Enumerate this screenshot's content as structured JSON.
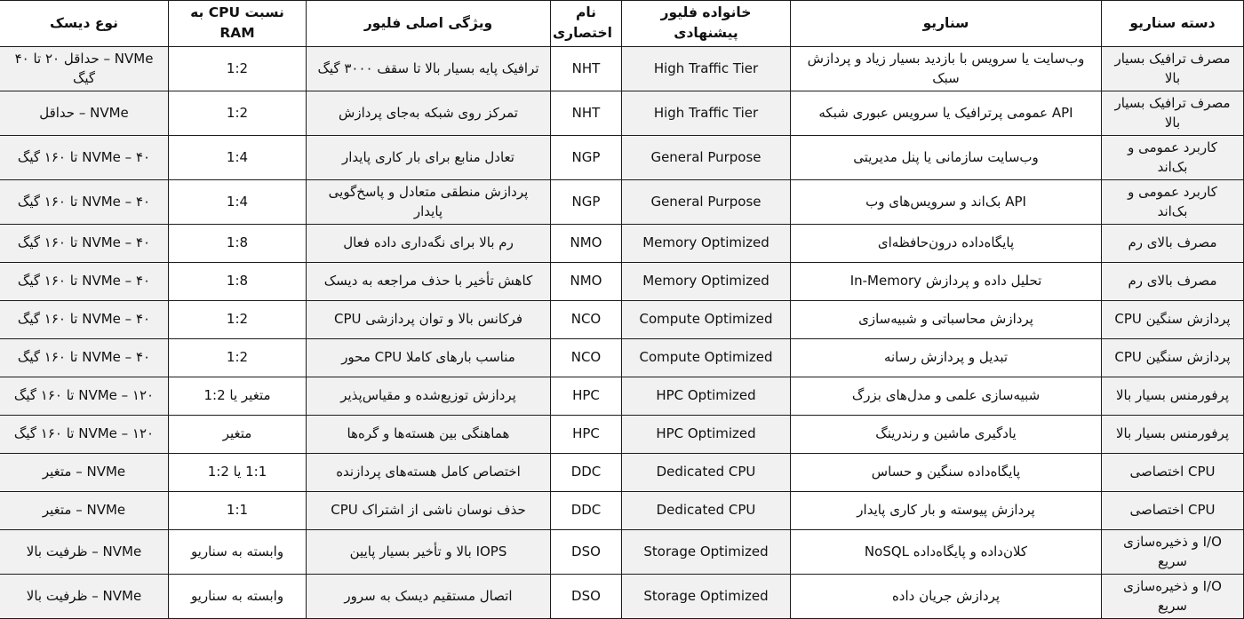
{
  "colors": {
    "stripe": "#f1f1f1",
    "border": "#1c1c1c",
    "text": "#111111",
    "background": "#ffffff"
  },
  "table": {
    "headers": [
      "دسته سناریو",
      "سناریو",
      "خانواده فلیور پیشنهادی",
      "نام اختصاری",
      "ویژگی اصلی فلیور",
      "نسبت CPU به RAM",
      "نوع دیسک"
    ],
    "column_keys": [
      "category",
      "scenario",
      "family",
      "abbr",
      "feature",
      "ratio",
      "disk"
    ],
    "rows": [
      {
        "category": "مصرف ترافیک بسیار بالا",
        "scenario": "وب‌سایت یا سرویس با بازدید بسیار زیاد و پردازش سبک",
        "family": "High Traffic Tier",
        "abbr": "NHT",
        "feature": "ترافیک پایه بسیار بالا تا سقف ۳۰۰۰ گیگ",
        "ratio": "1:2",
        "disk": "NVMe – حداقل ۲۰ تا ۴۰ گیگ"
      },
      {
        "category": "مصرف ترافیک بسیار بالا",
        "scenario": "API عمومی پرترافیک یا سرویس عبوری شبکه",
        "family": "High Traffic Tier",
        "abbr": "NHT",
        "feature": "تمرکز روی شبکه به‌جای پردازش",
        "ratio": "1:2",
        "disk": "NVMe – حداقل"
      },
      {
        "category": "کاربرد عمومی و بک‌اند",
        "scenario": "وب‌سایت سازمانی یا پنل مدیریتی",
        "family": "General Purpose",
        "abbr": "NGP",
        "feature": "تعادل منابع برای بار کاری پایدار",
        "ratio": "1:4",
        "disk": "NVMe – ۴۰ تا ۱۶۰ گیگ"
      },
      {
        "category": "کاربرد عمومی و بک‌اند",
        "scenario": "API بک‌اند و سرویس‌های وب",
        "family": "General Purpose",
        "abbr": "NGP",
        "feature": "پردازش منطقی متعادل و پاسخ‌گویی پایدار",
        "ratio": "1:4",
        "disk": "NVMe – ۴۰ تا ۱۶۰ گیگ"
      },
      {
        "category": "مصرف بالای رم",
        "scenario": "پایگاه‌داده درون‌حافظه‌ای",
        "family": "Memory Optimized",
        "abbr": "NMO",
        "feature": "رم بالا برای نگه‌داری داده فعال",
        "ratio": "1:8",
        "disk": "NVMe – ۴۰ تا ۱۶۰ گیگ"
      },
      {
        "category": "مصرف بالای رم",
        "scenario": "تحلیل داده و پردازش In-Memory",
        "family": "Memory Optimized",
        "abbr": "NMO",
        "feature": "کاهش تأخیر با حذف مراجعه به دیسک",
        "ratio": "1:8",
        "disk": "NVMe – ۴۰ تا ۱۶۰ گیگ"
      },
      {
        "category": "پردازش سنگین CPU",
        "scenario": "پردازش محاسباتی و شبیه‌سازی",
        "family": "Compute Optimized",
        "abbr": "NCO",
        "feature": "فرکانس بالا و توان پردازشی CPU",
        "ratio": "1:2",
        "disk": "NVMe – ۴۰ تا ۱۶۰ گیگ"
      },
      {
        "category": "پردازش سنگین CPU",
        "scenario": "تبدیل و پردازش رسانه",
        "family": "Compute Optimized",
        "abbr": "NCO",
        "feature": "مناسب بارهای کاملا CPU محور",
        "ratio": "1:2",
        "disk": "NVMe – ۴۰ تا ۱۶۰ گیگ"
      },
      {
        "category": "پرفورمنس بسیار بالا",
        "scenario": "شبیه‌سازی علمی و مدل‌های بزرگ",
        "family": "HPC Optimized",
        "abbr": "HPC",
        "feature": "پردازش توزیع‌شده و مقیاس‌پذیر",
        "ratio": "متغیر یا 1:2",
        "disk": "NVMe – ۱۲۰ تا ۱۶۰ گیگ"
      },
      {
        "category": "پرفورمنس بسیار بالا",
        "scenario": "یادگیری ماشین و رندرینگ",
        "family": "HPC Optimized",
        "abbr": "HPC",
        "feature": "هماهنگی بین هسته‌ها و گره‌ها",
        "ratio": "متغیر",
        "disk": "NVMe – ۱۲۰ تا ۱۶۰ گیگ"
      },
      {
        "category": "CPU اختصاصی",
        "scenario": "پایگاه‌داده سنگین و حساس",
        "family": "Dedicated CPU",
        "abbr": "DDC",
        "feature": "اختصاص کامل هسته‌های پردازنده",
        "ratio": "1:1 یا 1:2",
        "disk": "NVMe – متغیر"
      },
      {
        "category": "CPU اختصاصی",
        "scenario": "پردازش پیوسته و بار کاری پایدار",
        "family": "Dedicated CPU",
        "abbr": "DDC",
        "feature": "حذف نوسان ناشی از اشتراک CPU",
        "ratio": "1:1",
        "disk": "NVMe – متغیر"
      },
      {
        "category": "I/O و ذخیره‌سازی سریع",
        "scenario": "کلان‌داده و پایگاه‌داده NoSQL",
        "family": "Storage Optimized",
        "abbr": "DSO",
        "feature": "IOPS بالا و تأخیر بسیار پایین",
        "ratio": "وابسته به سناریو",
        "disk": "NVMe – ظرفیت بالا"
      },
      {
        "category": "I/O و ذخیره‌سازی سریع",
        "scenario": "پردازش جریان داده",
        "family": "Storage Optimized",
        "abbr": "DSO",
        "feature": "اتصال مستقیم دیسک به سرور",
        "ratio": "وابسته به سناریو",
        "disk": "NVMe – ظرفیت بالا"
      }
    ]
  }
}
